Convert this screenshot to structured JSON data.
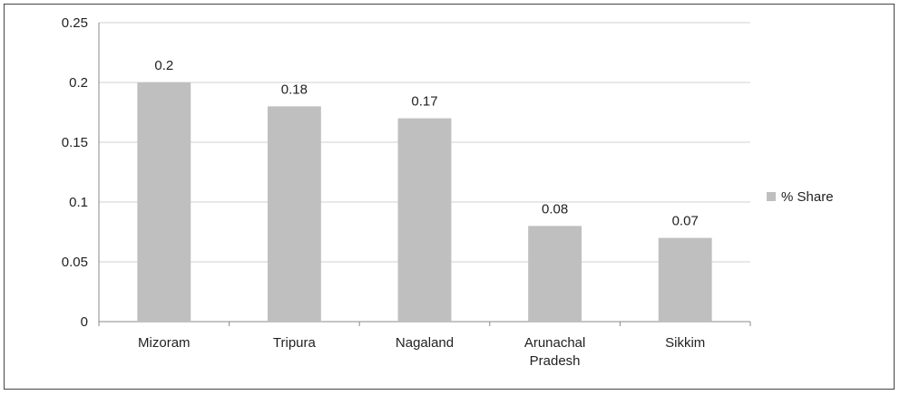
{
  "chart_data": {
    "type": "bar",
    "categories": [
      "Mizoram",
      "Tripura",
      "Nagaland",
      "Arunachal Pradesh",
      "Sikkim"
    ],
    "category_lines": [
      [
        "Mizoram"
      ],
      [
        "Tripura"
      ],
      [
        "Nagaland"
      ],
      [
        "Arunachal",
        "Pradesh"
      ],
      [
        "Sikkim"
      ]
    ],
    "series": [
      {
        "name": "% Share",
        "values": [
          0.2,
          0.18,
          0.17,
          0.08,
          0.07
        ],
        "color": "#bfbfbf"
      }
    ],
    "data_labels": [
      "0.2",
      "0.18",
      "0.17",
      "0.08",
      "0.07"
    ],
    "y_ticks": [
      "0",
      "0.05",
      "0.1",
      "0.15",
      "0.2",
      "0.25"
    ],
    "ylim": [
      0,
      0.25
    ],
    "grid": true,
    "gridline_color": "#d0d0d0",
    "legend_position": "right",
    "title": "",
    "xlabel": "",
    "ylabel": ""
  }
}
